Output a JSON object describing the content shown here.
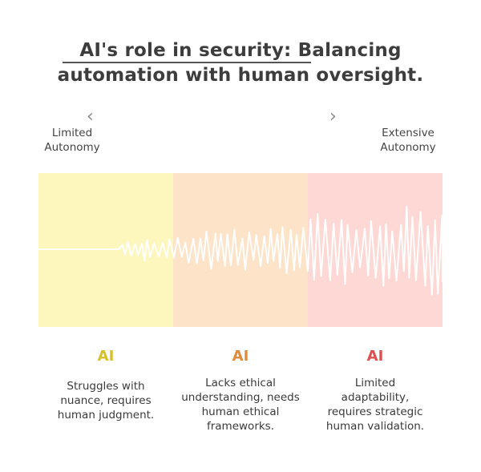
{
  "title": {
    "line1": "AI's role in security: Balancing",
    "line2": "automation with human oversight."
  },
  "scale": {
    "left_arrow": "‹",
    "right_arrow": "›",
    "left_label": [
      "Limited",
      "Autonomy"
    ],
    "right_label": [
      "Extensive",
      "Autonomy"
    ]
  },
  "colors": {
    "band1": "#fdf7bd",
    "band2": "#fde3c8",
    "band3": "#fdd8d4",
    "head1": "#d9c02a",
    "head2": "#e08a3c",
    "head3": "#e04e4e"
  },
  "columns": [
    {
      "heading": "AI",
      "lines": [
        "Struggles with",
        "nuance, requires",
        "human judgment."
      ]
    },
    {
      "heading": "AI",
      "lines": [
        "Lacks ethical",
        "understanding, needs",
        "human ethical",
        "frameworks."
      ]
    },
    {
      "heading": "AI",
      "lines": [
        "Limited",
        "adaptability,",
        "requires strategic",
        "human validation."
      ]
    }
  ]
}
